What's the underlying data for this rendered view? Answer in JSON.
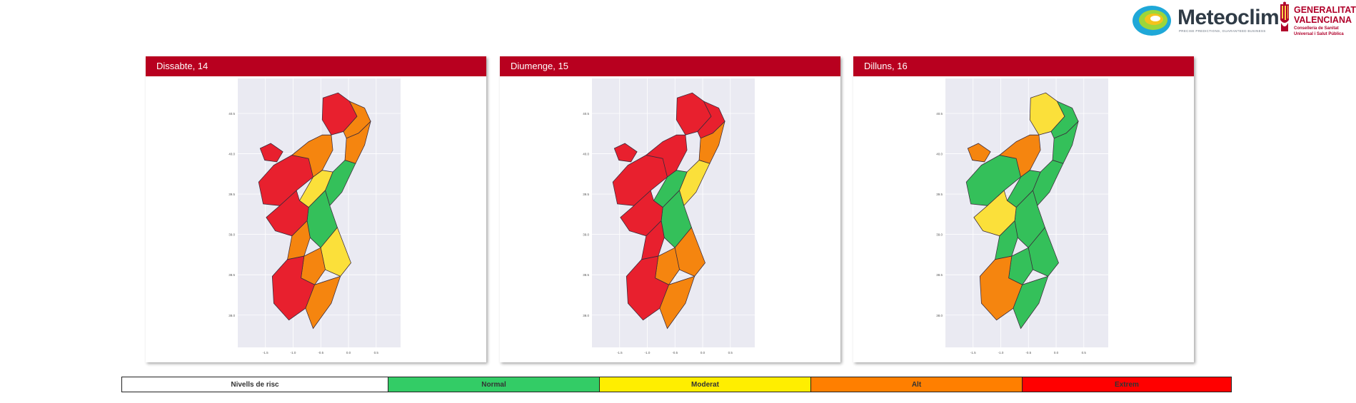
{
  "header": {
    "brand_name": "Meteoclim",
    "brand_tagline": "PRECISE PREDICTIONS, GUARANTEED BUSINESS",
    "gov_line1": "GENERALITAT",
    "gov_line2": "VALENCIANA",
    "gov_dept1": "Conselleria de Sanitat",
    "gov_dept2": "Universal i Salut Pública"
  },
  "days": [
    {
      "label": "Dissabte, 14"
    },
    {
      "label": "Diumenge, 15"
    },
    {
      "label": "Dilluns, 16"
    }
  ],
  "map_axes": {
    "x_ticks": [
      "-1.5",
      "-1.0",
      "-0.5",
      "0.0",
      "0.5"
    ],
    "y_ticks": [
      "40.5",
      "40.0",
      "39.5",
      "39.0",
      "38.5",
      "38.0"
    ]
  },
  "legend": {
    "title": "Nivells de risc",
    "levels": [
      {
        "label": "Normal",
        "color": "#33cc66"
      },
      {
        "label": "Moderat",
        "color": "#ffee00"
      },
      {
        "label": "Alt",
        "color": "#ff7f00"
      },
      {
        "label": "Extrem",
        "color": "#ff0000"
      }
    ]
  },
  "map_colors": {
    "extrem": "#e8202e",
    "alt": "#f5850f",
    "moderat": "#fbe03a",
    "normal": "#34c05a"
  }
}
